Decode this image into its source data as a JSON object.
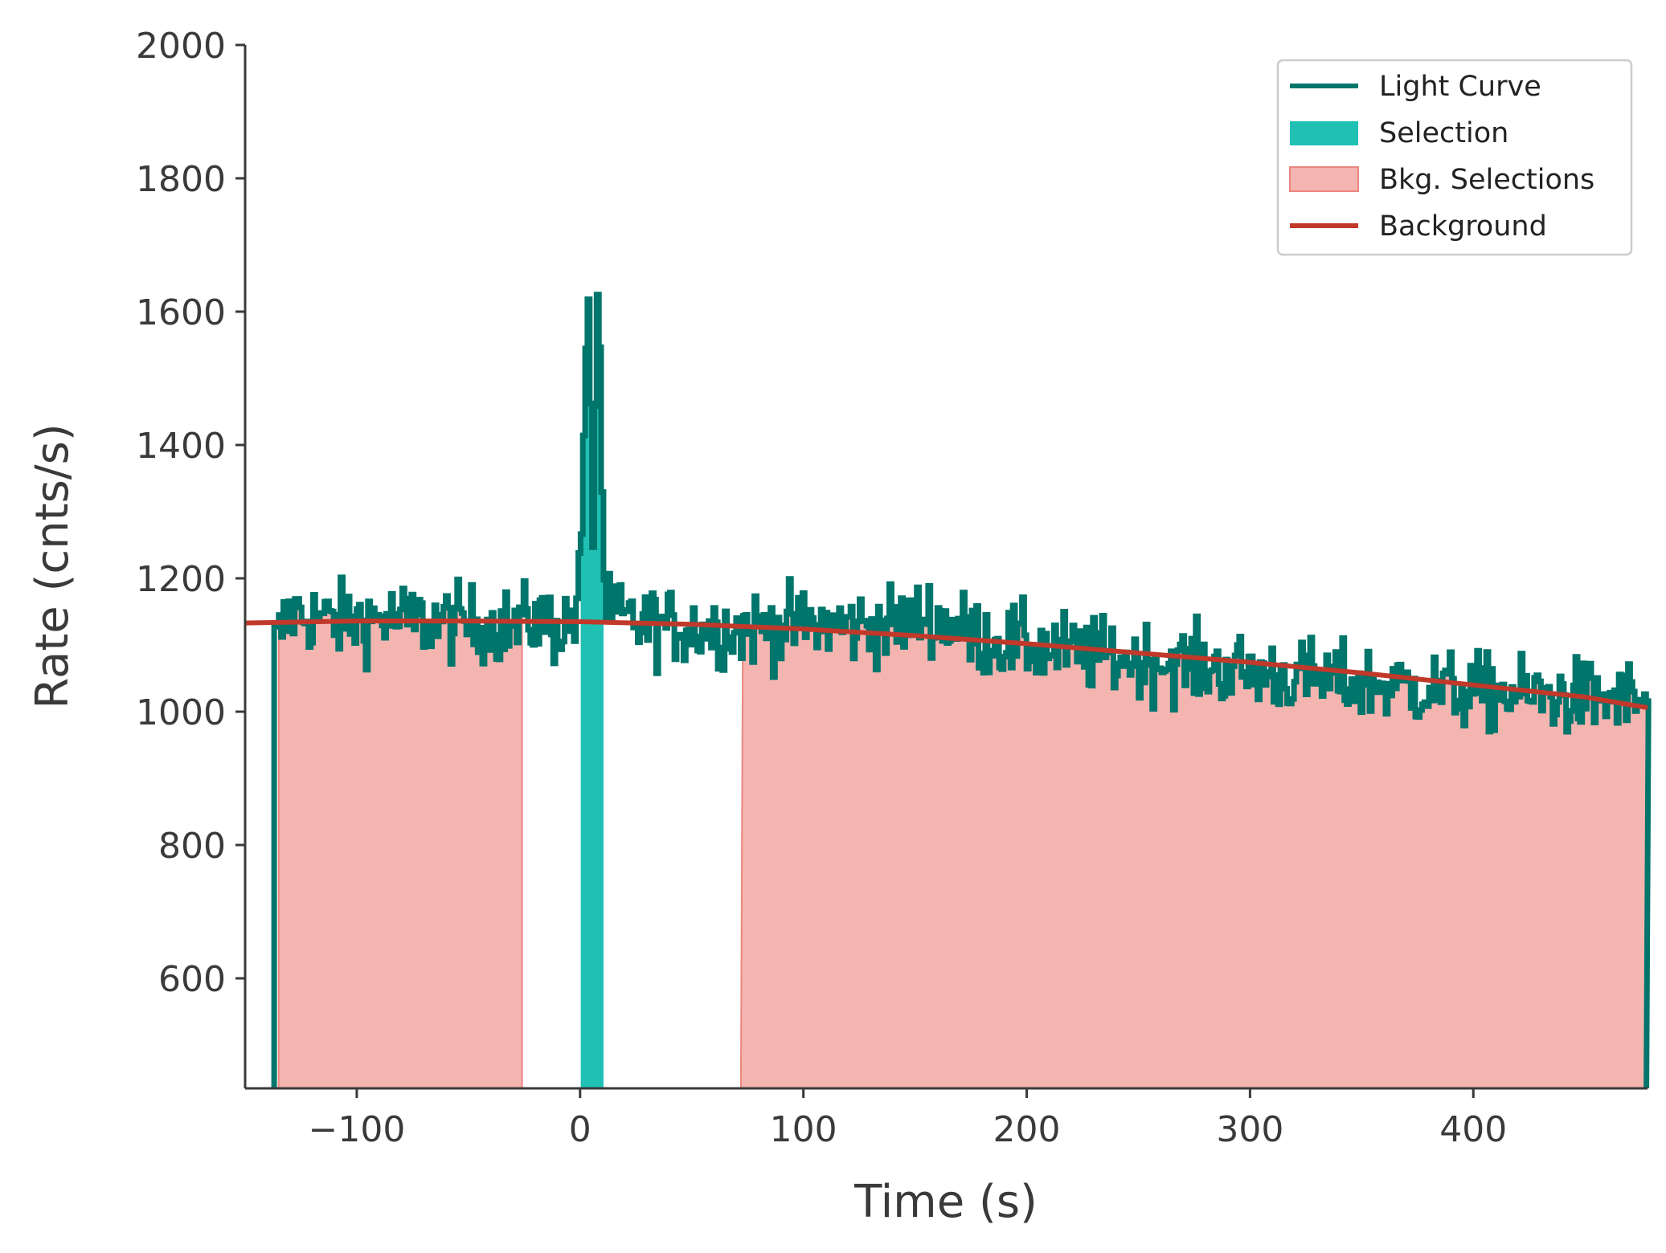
{
  "chart_data": {
    "type": "line",
    "title": "",
    "xlabel": "Time (s)",
    "ylabel": "Rate (cnts/s)",
    "xlim": [
      -150,
      478
    ],
    "ylim": [
      435,
      2000
    ],
    "xticks": [
      -100,
      0,
      100,
      200,
      300,
      400
    ],
    "xtick_labels": [
      "−100",
      "0",
      "100",
      "200",
      "300",
      "400"
    ],
    "yticks": [
      600,
      800,
      1000,
      1200,
      1400,
      1600,
      1800,
      2000
    ],
    "ytick_labels": [
      "600",
      "800",
      "1000",
      "1200",
      "1400",
      "1600",
      "1800",
      "2000"
    ],
    "grid": false,
    "legend_position": "top-right",
    "light_curve": {
      "name": "Light Curve",
      "color": "#00756b",
      "step": 1.024,
      "x_start": -137,
      "x_end": 477.5,
      "rate_anchors": [
        [
          -137,
          1100
        ],
        [
          -130,
          1150
        ],
        [
          -110,
          1135
        ],
        [
          -90,
          1140
        ],
        [
          -70,
          1135
        ],
        [
          -50,
          1132
        ],
        [
          -30,
          1128
        ],
        [
          -20,
          1140
        ],
        [
          -10,
          1125
        ],
        [
          -3,
          1140
        ],
        [
          0,
          1240
        ],
        [
          1,
          1390
        ],
        [
          2,
          1500
        ],
        [
          3,
          1620
        ],
        [
          4,
          1560
        ],
        [
          5,
          1200
        ],
        [
          6,
          1380
        ],
        [
          7,
          1610
        ],
        [
          8,
          1660
        ],
        [
          9,
          1390
        ],
        [
          10,
          1240
        ],
        [
          11,
          1150
        ],
        [
          20,
          1135
        ],
        [
          40,
          1128
        ],
        [
          60,
          1125
        ],
        [
          80,
          1125
        ],
        [
          100,
          1130
        ],
        [
          120,
          1128
        ],
        [
          140,
          1130
        ],
        [
          155,
          1145
        ],
        [
          180,
          1110
        ],
        [
          200,
          1100
        ],
        [
          230,
          1085
        ],
        [
          260,
          1075
        ],
        [
          300,
          1060
        ],
        [
          340,
          1045
        ],
        [
          380,
          1035
        ],
        [
          420,
          1025
        ],
        [
          460,
          1020
        ],
        [
          477.5,
          1015
        ]
      ],
      "noise_amplitude": 55,
      "max_spike": 1670
    },
    "selection": {
      "name": "Selection",
      "color": "#20c0b5",
      "x_range": [
        0.3,
        10.5
      ]
    },
    "bkg_selections": {
      "name": "Bkg. Selections",
      "color": "#f4b5b1",
      "edge_color": "#e9877f",
      "ranges": [
        [
          -135,
          -26
        ],
        [
          72,
          477.5
        ]
      ]
    },
    "background": {
      "name": "Background",
      "color": "#c0392b",
      "points": [
        [
          -150,
          1133
        ],
        [
          -100,
          1136
        ],
        [
          -50,
          1136
        ],
        [
          0,
          1135
        ],
        [
          50,
          1131
        ],
        [
          100,
          1124
        ],
        [
          150,
          1114
        ],
        [
          200,
          1102
        ],
        [
          250,
          1088
        ],
        [
          300,
          1074
        ],
        [
          350,
          1058
        ],
        [
          400,
          1040
        ],
        [
          450,
          1022
        ],
        [
          478,
          1006
        ]
      ]
    },
    "legend": [
      "Light Curve",
      "Selection",
      "Bkg. Selections",
      "Background"
    ]
  }
}
